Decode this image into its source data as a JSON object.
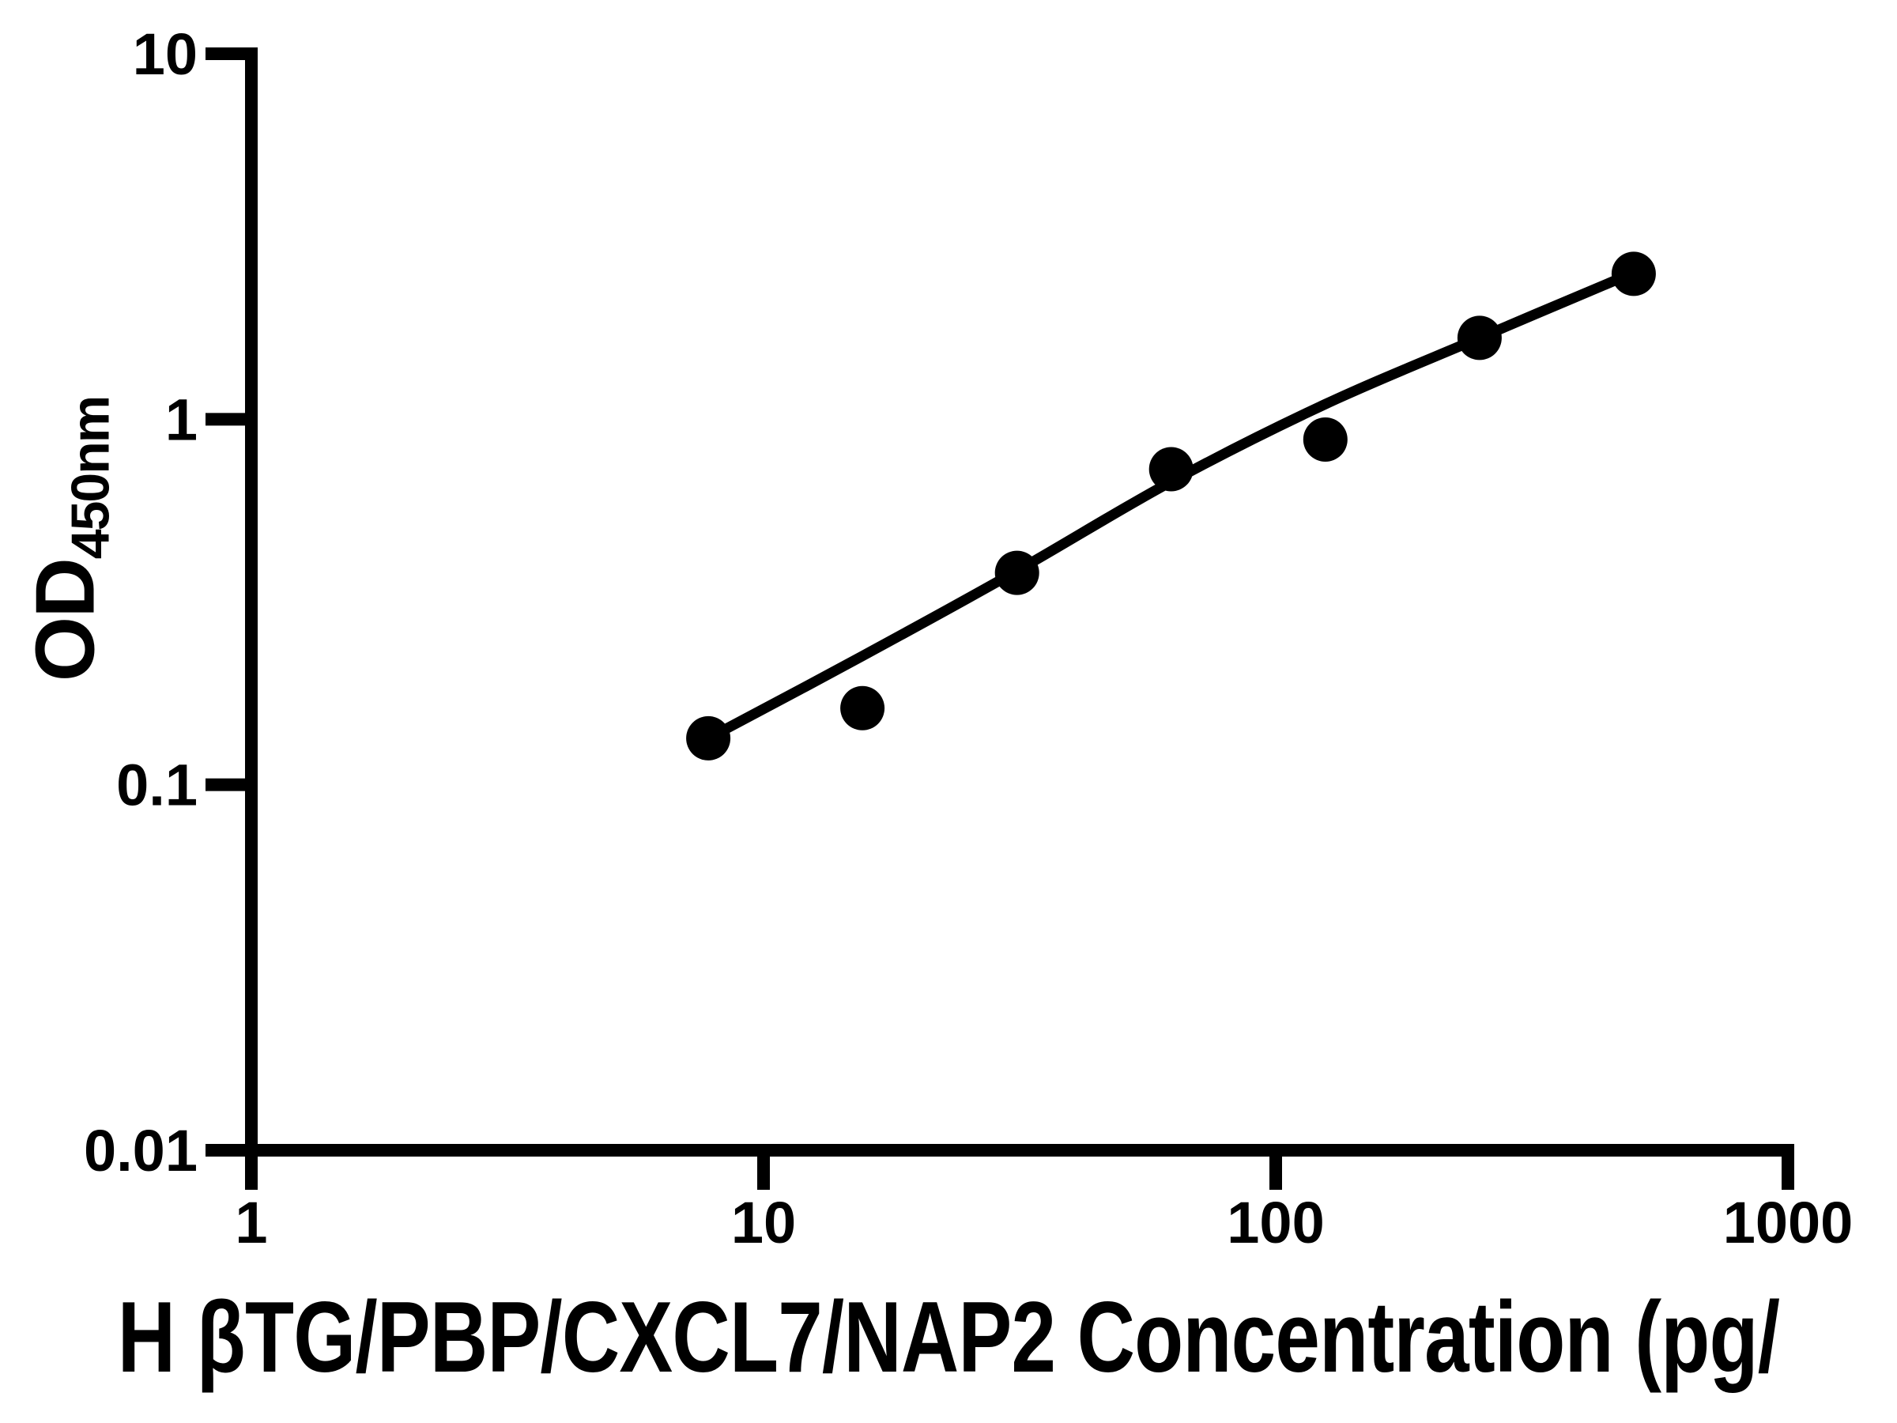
{
  "figure": {
    "background_color": "#ffffff",
    "ink_color": "#000000"
  },
  "chart_data": {
    "type": "scatter",
    "description": "ELISA standard curve, log-log axes, black filled circle markers with fitted line",
    "grid": false,
    "legend": false,
    "x_axis": {
      "label_visible": "H βTG/PBP/CXCL7/NAP2 Concentration (pg/",
      "label_clipped": true,
      "scale": "log",
      "range": [
        1,
        1000
      ],
      "tick_labels": [
        "1",
        "10",
        "100",
        "1000"
      ],
      "tick_values": [
        1,
        10,
        100,
        1000
      ]
    },
    "y_axis": {
      "label": "OD",
      "label_subscript": "450nm",
      "scale": "log",
      "range": [
        0.01,
        10
      ],
      "tick_labels": [
        "10",
        "1",
        "0.1",
        "0.01"
      ],
      "tick_values": [
        10,
        1,
        0.1,
        0.01
      ]
    },
    "series": [
      {
        "name": "standard-curve-points",
        "marker": "filled-circle",
        "color": "#000000",
        "points": [
          {
            "x": 7.8,
            "y": 0.134
          },
          {
            "x": 15.6,
            "y": 0.162
          },
          {
            "x": 31.25,
            "y": 0.38
          },
          {
            "x": 62.5,
            "y": 0.73
          },
          {
            "x": 125,
            "y": 0.88
          },
          {
            "x": 250,
            "y": 1.67
          },
          {
            "x": 500,
            "y": 2.5
          }
        ]
      }
    ],
    "fit_line": {
      "color": "#000000",
      "points": [
        {
          "x": 7.8,
          "y": 0.134
        },
        {
          "x": 15.6,
          "y": 0.225
        },
        {
          "x": 31.25,
          "y": 0.385
        },
        {
          "x": 62.5,
          "y": 0.675
        },
        {
          "x": 125,
          "y": 1.1
        },
        {
          "x": 250,
          "y": 1.67
        },
        {
          "x": 500,
          "y": 2.52
        }
      ]
    }
  }
}
